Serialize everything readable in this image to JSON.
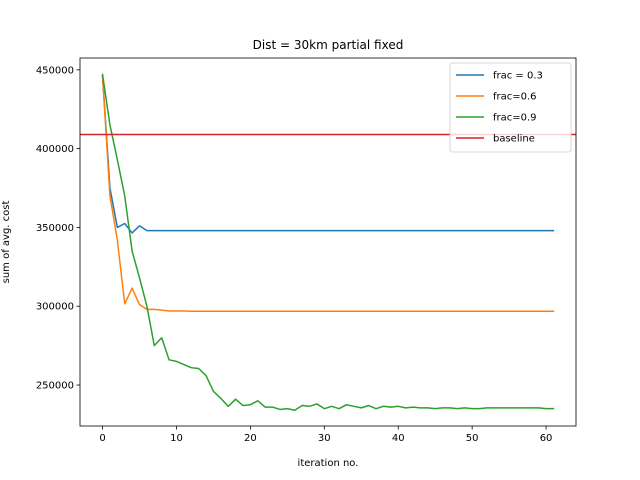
{
  "chart_data": {
    "type": "line",
    "title": "Dist = 30km partial fixed",
    "xlabel": "iteration no.",
    "ylabel": "sum of avg. cost",
    "xlim": [
      -3.05,
      64.05
    ],
    "ylim": [
      224000,
      457500
    ],
    "xticks": [
      0,
      10,
      20,
      30,
      40,
      50,
      60
    ],
    "yticks": [
      250000,
      300000,
      350000,
      400000,
      450000
    ],
    "grid": false,
    "legend_position": "top-right",
    "series": [
      {
        "name": "frac = 0.3",
        "color": "#1f77b4",
        "x": [
          0,
          1,
          2,
          3,
          4,
          5,
          6,
          7,
          8,
          9,
          10,
          11,
          12,
          13,
          14,
          15,
          16,
          17,
          18,
          19,
          20,
          21,
          22,
          23,
          24,
          25,
          26,
          27,
          28,
          29,
          30,
          31,
          32,
          33,
          34,
          35,
          36,
          37,
          38,
          39,
          40,
          41,
          42,
          43,
          44,
          45,
          46,
          47,
          48,
          49,
          50,
          51,
          52,
          53,
          54,
          55,
          56,
          57,
          58,
          59,
          60,
          61
        ],
        "y": [
          446000,
          375000,
          350000,
          352500,
          346500,
          351000,
          348000,
          348000,
          348000,
          348000,
          348000,
          348000,
          348000,
          348000,
          348000,
          348000,
          348000,
          348000,
          348000,
          348000,
          348000,
          348000,
          348000,
          348000,
          348000,
          348000,
          348000,
          348000,
          348000,
          348000,
          348000,
          348000,
          348000,
          348000,
          348000,
          348000,
          348000,
          348000,
          348000,
          348000,
          348000,
          348000,
          348000,
          348000,
          348000,
          348000,
          348000,
          348000,
          348000,
          348000,
          348000,
          348000,
          348000,
          348000,
          348000,
          348000,
          348000,
          348000,
          348000,
          348000,
          348000,
          348000
        ]
      },
      {
        "name": "frac=0.6",
        "color": "#ff7f0e",
        "x": [
          0,
          1,
          2,
          3,
          4,
          5,
          6,
          7,
          8,
          9,
          10,
          11,
          12,
          13,
          14,
          15,
          16,
          17,
          18,
          19,
          20,
          21,
          22,
          23,
          24,
          25,
          26,
          27,
          28,
          29,
          30,
          31,
          32,
          33,
          34,
          35,
          36,
          37,
          38,
          39,
          40,
          41,
          42,
          43,
          44,
          45,
          46,
          47,
          48,
          49,
          50,
          51,
          52,
          53,
          54,
          55,
          56,
          57,
          58,
          59,
          60,
          61
        ],
        "y": [
          446000,
          370000,
          342000,
          301500,
          311500,
          301000,
          298000,
          298000,
          297500,
          297000,
          297000,
          297000,
          296800,
          296800,
          296800,
          296800,
          296800,
          296800,
          296800,
          296800,
          296800,
          296800,
          296800,
          296800,
          296800,
          296800,
          296800,
          296800,
          296800,
          296800,
          296800,
          296800,
          296800,
          296800,
          296800,
          296800,
          296800,
          296800,
          296800,
          296800,
          296800,
          296800,
          296800,
          296800,
          296800,
          296800,
          296800,
          296800,
          296800,
          296800,
          296800,
          296800,
          296800,
          296800,
          296800,
          296800,
          296800,
          296800,
          296800,
          296800,
          296800,
          296800
        ]
      },
      {
        "name": "frac=0.9",
        "color": "#2ca02c",
        "x": [
          0,
          1,
          2,
          3,
          4,
          5,
          6,
          7,
          8,
          9,
          10,
          11,
          12,
          13,
          14,
          15,
          16,
          17,
          18,
          19,
          20,
          21,
          22,
          23,
          24,
          25,
          26,
          27,
          28,
          29,
          30,
          31,
          32,
          33,
          34,
          35,
          36,
          37,
          38,
          39,
          40,
          41,
          42,
          43,
          44,
          45,
          46,
          47,
          48,
          49,
          50,
          51,
          52,
          53,
          54,
          55,
          56,
          57,
          58,
          59,
          60,
          61
        ],
        "y": [
          447000,
          415000,
          393000,
          370000,
          335000,
          318000,
          300000,
          275000,
          280000,
          266000,
          265000,
          263000,
          261000,
          260500,
          256000,
          246000,
          241500,
          236500,
          241000,
          237000,
          237500,
          240000,
          236000,
          236000,
          234500,
          235000,
          234000,
          237000,
          236500,
          238000,
          235000,
          236500,
          235000,
          237500,
          236500,
          235500,
          237000,
          235000,
          236500,
          236000,
          236500,
          235500,
          236000,
          235500,
          235500,
          235000,
          235500,
          235500,
          235000,
          235500,
          235000,
          235000,
          235500,
          235500,
          235500,
          235500,
          235500,
          235500,
          235500,
          235500,
          235000,
          235000
        ]
      }
    ],
    "baseline": {
      "name": "baseline",
      "color": "#d62728",
      "y": 409000
    }
  }
}
